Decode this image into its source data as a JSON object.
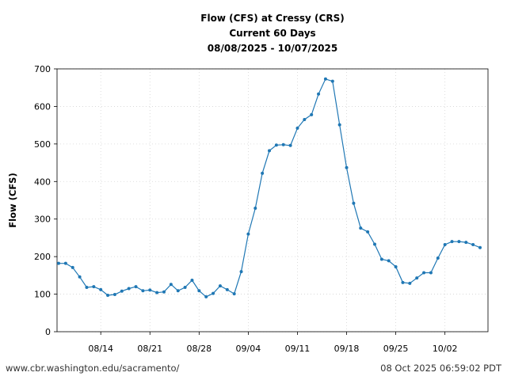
{
  "chart_data": {
    "type": "line",
    "title": "Flow (CFS) at Cressy (CRS)",
    "subtitle": "Current 60 Days",
    "date_range": "08/08/2025 - 10/07/2025",
    "ylabel": "Flow (CFS)",
    "xlabel": "",
    "ylim": [
      0,
      700
    ],
    "yticks": [
      "0",
      "100",
      "200",
      "300",
      "400",
      "500",
      "600",
      "700"
    ],
    "xlim": [
      "2025-08-08",
      "2025-10-07"
    ],
    "xticks": [
      {
        "date": "2025-08-14",
        "label": "08/14"
      },
      {
        "date": "2025-08-21",
        "label": "08/21"
      },
      {
        "date": "2025-08-28",
        "label": "08/28"
      },
      {
        "date": "2025-09-04",
        "label": "09/04"
      },
      {
        "date": "2025-09-11",
        "label": "09/11"
      },
      {
        "date": "2025-09-18",
        "label": "09/18"
      },
      {
        "date": "2025-09-25",
        "label": "09/25"
      },
      {
        "date": "2025-10-02",
        "label": "10/02"
      }
    ],
    "grid": true,
    "color": "#1f77b4",
    "series": [
      {
        "x": [
          "2025-08-08",
          "2025-08-09",
          "2025-08-10",
          "2025-08-11",
          "2025-08-12",
          "2025-08-13",
          "2025-08-14",
          "2025-08-15",
          "2025-08-16",
          "2025-08-17",
          "2025-08-18",
          "2025-08-19",
          "2025-08-20",
          "2025-08-21",
          "2025-08-22",
          "2025-08-23",
          "2025-08-24",
          "2025-08-25",
          "2025-08-26",
          "2025-08-27",
          "2025-08-28",
          "2025-08-29",
          "2025-08-30",
          "2025-08-31",
          "2025-09-01",
          "2025-09-02",
          "2025-09-03",
          "2025-09-04",
          "2025-09-05",
          "2025-09-06",
          "2025-09-07",
          "2025-09-08",
          "2025-09-09",
          "2025-09-10",
          "2025-09-11",
          "2025-09-12",
          "2025-09-13",
          "2025-09-14",
          "2025-09-15",
          "2025-09-16",
          "2025-09-17",
          "2025-09-18",
          "2025-09-19",
          "2025-09-20",
          "2025-09-21",
          "2025-09-22",
          "2025-09-23",
          "2025-09-24",
          "2025-09-25",
          "2025-09-26",
          "2025-09-27",
          "2025-09-28",
          "2025-09-29",
          "2025-09-30",
          "2025-10-01",
          "2025-10-02",
          "2025-10-03",
          "2025-10-04",
          "2025-10-05",
          "2025-10-06",
          "2025-10-07"
        ],
        "values": [
          182,
          182,
          171,
          146,
          118,
          120,
          112,
          97,
          99,
          108,
          115,
          120,
          109,
          111,
          104,
          106,
          126,
          109,
          118,
          137,
          109,
          93,
          102,
          122,
          112,
          101,
          160,
          260,
          329,
          422,
          482,
          497,
          498,
          496,
          542,
          565,
          578,
          633,
          673,
          667,
          551,
          437,
          342,
          276,
          266,
          233,
          193,
          189,
          173,
          131,
          129,
          143,
          157,
          157,
          196,
          232,
          240,
          240,
          238,
          232,
          224
        ]
      }
    ]
  },
  "footer": {
    "url": "www.cbr.washington.edu/sacramento/",
    "timestamp": "08 Oct 2025 06:59:02 PDT"
  }
}
